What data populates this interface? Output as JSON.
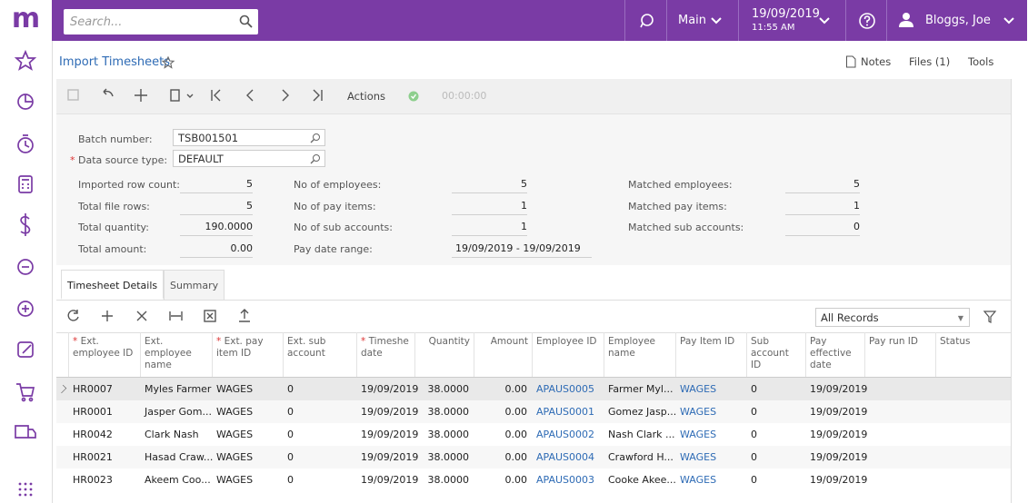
{
  "topbar": {
    "logo": "m",
    "search_placeholder": "Search...",
    "workspace": "Main",
    "date": "19/09/2019",
    "time": "11:55 AM",
    "user": "Bloggs, Joe"
  },
  "header": {
    "title": "Import Timesheets",
    "links": [
      "Notes",
      "Files (1)",
      "Tools"
    ]
  },
  "toolbar": {
    "actions": "Actions",
    "timer": "00:00:00"
  },
  "form": {
    "fields": [
      {
        "label": "Batch number:",
        "value": "TSB001501",
        "required": false
      },
      {
        "label": "Data source type:",
        "value": "DEFAULT",
        "required": true
      }
    ],
    "summary": [
      [
        {
          "label": "Imported row count:",
          "value": "5"
        },
        {
          "label": "Total file rows:",
          "value": "5"
        },
        {
          "label": "Total quantity:",
          "value": "190.0000"
        },
        {
          "label": "Total amount:",
          "value": "0.00"
        }
      ],
      [
        {
          "label": "No of employees:",
          "value": "5"
        },
        {
          "label": "No of pay items:",
          "value": "1"
        },
        {
          "label": "No of sub accounts:",
          "value": "1"
        },
        {
          "label": "Pay date range:",
          "value": "19/09/2019 - 19/09/2019"
        }
      ],
      [
        {
          "label": "Matched employees:",
          "value": "5"
        },
        {
          "label": "Matched pay items:",
          "value": "1"
        },
        {
          "label": "Matched sub accounts:",
          "value": "0"
        }
      ]
    ]
  },
  "tabs": [
    "Timesheet Details",
    "Summary"
  ],
  "grid": {
    "filter": "All Records",
    "columns": [
      {
        "label": "Ext. employee ID",
        "required": true
      },
      {
        "label": "Ext. employee name",
        "required": false
      },
      {
        "label": "Ext. pay item ID",
        "required": true
      },
      {
        "label": "Ext. sub account",
        "required": false
      },
      {
        "label": "Timeshe date",
        "required": true
      },
      {
        "label": "Quantity",
        "required": false
      },
      {
        "label": "Amount",
        "required": false
      },
      {
        "label": "Employee ID",
        "required": false
      },
      {
        "label": "Employee name",
        "required": false
      },
      {
        "label": "Pay Item ID",
        "required": false
      },
      {
        "label": "Sub account ID",
        "required": false
      },
      {
        "label": "Pay effective date",
        "required": false
      },
      {
        "label": "Pay run ID",
        "required": false
      },
      {
        "label": "Status",
        "required": false
      }
    ],
    "rows": [
      [
        "HR0007",
        "Myles Farmer",
        "WAGES",
        "0",
        "19/09/2019",
        "38.0000",
        "0.00",
        "APAUS0005",
        "Farmer Myl...",
        "WAGES",
        "0",
        "19/09/2019",
        "",
        ""
      ],
      [
        "HR0001",
        "Jasper Gom...",
        "WAGES",
        "0",
        "19/09/2019",
        "38.0000",
        "0.00",
        "APAUS0001",
        "Gomez Jasp...",
        "WAGES",
        "0",
        "19/09/2019",
        "",
        ""
      ],
      [
        "HR0042",
        "Clark Nash",
        "WAGES",
        "0",
        "19/09/2019",
        "38.0000",
        "0.00",
        "APAUS0002",
        "Nash Clark ...",
        "WAGES",
        "0",
        "19/09/2019",
        "",
        ""
      ],
      [
        "HR0021",
        "Hasad Craw...",
        "WAGES",
        "0",
        "19/09/2019",
        "38.0000",
        "0.00",
        "APAUS0004",
        "Crawford H...",
        "WAGES",
        "0",
        "19/09/2019",
        "",
        ""
      ],
      [
        "HR0023",
        "Akeem Coo...",
        "WAGES",
        "0",
        "19/09/2019",
        "38.0000",
        "0.00",
        "APAUS0003",
        "Cooke Akee...",
        "WAGES",
        "0",
        "19/09/2019",
        "",
        ""
      ]
    ]
  }
}
